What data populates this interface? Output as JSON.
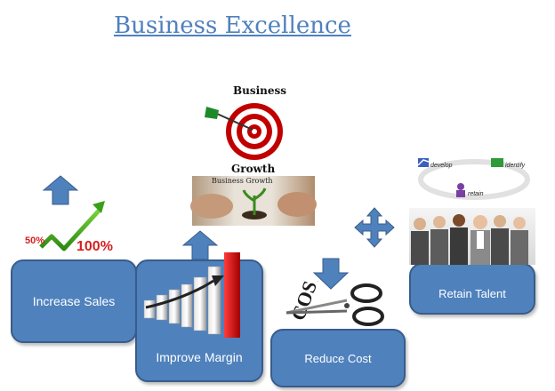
{
  "title": "Business Excellence",
  "boxes": {
    "increase_sales": "Increase Sales",
    "improve_margin": "Improve Margin",
    "reduce_cost": "Reduce Cost",
    "retain_talent": "Retain Talent"
  },
  "target_card": {
    "top_word": "Business",
    "bottom_word": "Growth",
    "caption": "Business Growth"
  },
  "sales_chart": {
    "left": "50%",
    "right": "100%"
  },
  "cost_word": "COST",
  "talent_cycle": {
    "develop": "develop",
    "identify": "identify",
    "retain": "retain"
  },
  "colors": {
    "box_fill": "#4f81bd",
    "box_border": "#385d8a",
    "title": "#4f81bd",
    "accent_red": "#d62020"
  }
}
